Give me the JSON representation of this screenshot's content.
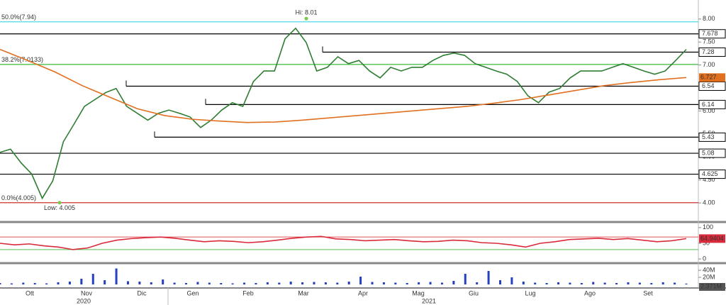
{
  "chart_data": [
    {
      "type": "line",
      "ylim": [
        3.6,
        8.26
      ],
      "yticks": [
        {
          "value": 4,
          "label": "4.00"
        },
        {
          "value": 4.5,
          "label": "4.50"
        },
        {
          "value": 5,
          "label": "5.00"
        },
        {
          "value": 5.5,
          "label": "5.50"
        },
        {
          "value": 6,
          "label": "6.00"
        },
        {
          "value": 6.5,
          "label": "6.50"
        },
        {
          "value": 7,
          "label": "7.00"
        },
        {
          "value": 7.5,
          "label": "7.50"
        },
        {
          "value": 8,
          "label": "8.00"
        }
      ],
      "series": [
        {
          "color": "#2e7d32",
          "values": [
            5.1,
            5.17,
            4.87,
            4.63,
            4.1,
            4.48,
            5.33,
            5.71,
            6.1,
            6.25,
            6.4,
            6.49,
            6.1,
            5.95,
            5.8,
            5.95,
            6.02,
            5.95,
            5.87,
            5.64,
            5.8,
            6.02,
            6.18,
            6.1,
            6.64,
            6.87,
            6.87,
            7.57,
            7.8,
            7.49,
            6.87,
            6.95,
            7.18,
            7.03,
            7.1,
            6.87,
            6.72,
            6.95,
            6.87,
            6.95,
            6.95,
            7.1,
            7.21,
            7.26,
            7.21,
            7.03,
            6.95,
            6.87,
            6.8,
            6.64,
            6.33,
            6.18,
            6.41,
            6.49,
            6.72,
            6.87,
            6.87,
            6.87,
            6.95,
            7.03,
            6.95,
            6.87,
            6.8,
            6.87,
            7.1,
            7.34
          ]
        },
        {
          "color": "#e07020",
          "values": [
            7.34,
            7.1,
            6.85,
            6.55,
            6.3,
            6.05,
            5.9,
            5.82,
            5.78,
            5.75,
            5.76,
            5.8,
            5.85,
            5.9,
            5.95,
            6.0,
            6.05,
            6.1,
            6.17,
            6.25,
            6.35,
            6.45,
            6.55,
            6.62,
            6.68,
            6.727
          ]
        }
      ],
      "levels": [
        {
          "value": 7.678,
          "color": "#000000"
        },
        {
          "value": 7.28,
          "color": "#000000"
        },
        {
          "value": 6.54,
          "color": "#000000"
        },
        {
          "value": 6.14,
          "color": "#000000"
        },
        {
          "value": 5.43,
          "color": "#000000"
        },
        {
          "value": 5.08,
          "color": "#000000"
        },
        {
          "value": 4.625,
          "color": "#000000"
        }
      ],
      "fib_levels": [
        {
          "value": 7.94,
          "label": "50.0%(7.94)",
          "color": "#4dd9e6"
        },
        {
          "value": 7.0133,
          "label": "38.2%(7.0133)",
          "color": "#4fc24f"
        },
        {
          "value": 4.005,
          "label": "0.0%(4.005)",
          "color": "#d03030"
        }
      ],
      "annotations": [
        {
          "value": 8.01,
          "label": "Hi: 8.01"
        },
        {
          "value": 4.005,
          "label": "Low: 4.005"
        }
      ]
    },
    {
      "type": "line",
      "ylim": [
        -11,
        111
      ],
      "yticks": [
        0,
        50,
        100
      ],
      "bands": [
        {
          "value": 70,
          "color": "#e05050"
        },
        {
          "value": 30,
          "color": "#50c050"
        }
      ],
      "series": [
        {
          "color": "#d82a3a",
          "values": [
            50,
            45,
            48,
            42,
            38,
            30,
            35,
            50,
            60,
            65,
            68,
            70,
            66,
            60,
            55,
            58,
            56,
            52,
            55,
            60,
            66,
            70,
            72,
            64,
            62,
            58,
            60,
            62,
            58,
            55,
            56,
            60,
            58,
            52,
            50,
            45,
            38,
            50,
            55,
            62,
            64,
            66,
            62,
            65,
            60,
            55,
            58,
            64.9404
          ]
        }
      ]
    },
    {
      "type": "bar",
      "ylim": [
        -8,
        56
      ],
      "yticks": [
        {
          "value": 20,
          "label": "20M"
        },
        {
          "value": 40,
          "label": "40M"
        }
      ],
      "series": [
        {
          "color": "#2540c0",
          "values": [
            4,
            3,
            5,
            4,
            3,
            6,
            8,
            16,
            30,
            12,
            45,
            9,
            8,
            6,
            14,
            5,
            4,
            7,
            5,
            4,
            3,
            5,
            4,
            6,
            5,
            8,
            6,
            7,
            6,
            5,
            8,
            22,
            7,
            6,
            5,
            4,
            6,
            7,
            5,
            10,
            30,
            6,
            38,
            12,
            20,
            8,
            5,
            4,
            6,
            5,
            4,
            7,
            5,
            4,
            6,
            5,
            4,
            6,
            5,
            2.371
          ]
        }
      ],
      "last_label": "2.371M",
      "x_labels": [
        "Ott",
        "Nov",
        "Dic",
        "Gen",
        "Feb",
        "Mar",
        "Apr",
        "Mag",
        "Giu",
        "Lug",
        "Ago",
        "Set"
      ],
      "years": [
        "2020",
        "2021"
      ]
    }
  ]
}
